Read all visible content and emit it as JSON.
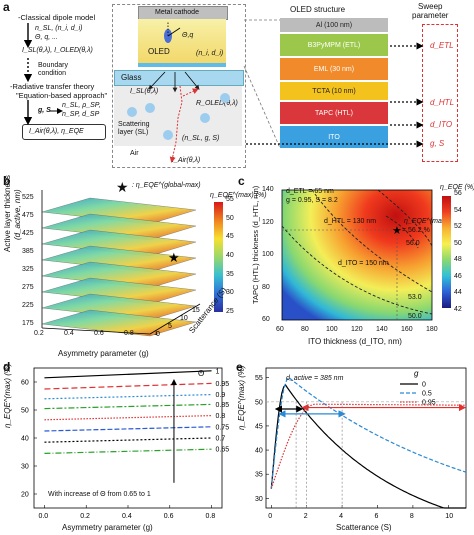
{
  "panel_a": {
    "label": "a",
    "steps": {
      "s1": "-Classical dipole model",
      "s2": "n_SL, (n_i, d_i)",
      "s3": "Θ, q, ...",
      "s4": "I_SL(θ,λ), I_OLED(θ,λ)",
      "s5": "Boundary",
      "s6": "condition",
      "s7": "-Radiative transfer theory",
      "s8": "\"Equation-based approach\"",
      "s9": "g, S",
      "s10": "n_SL, ρ_SP,",
      "s11": "n_SP, d_SP",
      "s12": "I_Air(θ,λ), η_EQE"
    },
    "device": {
      "cathode": "Metal cathode",
      "oled": "OLED",
      "theta_q": "Θ,q",
      "ni_di": "(n_i, d_i)",
      "glass": "Glass",
      "isl": "I_SL(θ,λ)",
      "roled": "R_OLED(θ,λ)",
      "scattering": "Scattering",
      "layer": "layer (SL)",
      "nsl": "(n_SL, g, S)",
      "air": "Air",
      "iair": "I_Air(θ,λ)"
    },
    "stack": {
      "title": "OLED structure",
      "layers": [
        "Al (100 nm)",
        "B3PyMPM (ETL)",
        "EML (30 nm)",
        "TCTA (10 nm)",
        "TAPC (HTL)",
        "ITO"
      ],
      "colors": [
        "#bcbcbc",
        "#9bc84a",
        "#f08a2a",
        "#f4c21c",
        "#d9373b",
        "#3aa0df"
      ]
    },
    "sweep": {
      "title1": "Sweep",
      "title2": "parameter",
      "etl": "d_ETL",
      "htl": "d_HTL",
      "ito": "d_ITO",
      "gs": "g, S"
    }
  },
  "panel_b": {
    "label": "b",
    "star_label": ": η_EQE^(global-max)",
    "cbar_title": "η_EQE^(max) (%)",
    "cbar_ticks": [
      "55",
      "50",
      "45",
      "40",
      "35",
      "30",
      "25"
    ],
    "y_title1": "Active layer thickness",
    "y_title2": "(d_active, nm)",
    "y_ticks": [
      "525",
      "475",
      "425",
      "385",
      "325",
      "275",
      "225",
      "175"
    ],
    "x_title": "Asymmetry parameter (g)",
    "x_ticks": [
      "0.2",
      "0.4",
      "0.6",
      "0.8",
      "1"
    ],
    "s_title": "Scatterance (S)",
    "s_ticks": [
      "0",
      "5",
      "10",
      "15"
    ]
  },
  "panel_c": {
    "label": "c",
    "legend": [
      "d_ETL = 65 nm",
      "g = 0.95, S = 8.2"
    ],
    "htl_label": "d_HTL = 130 nm",
    "ito_label": "d_ITO = 150 nm",
    "max_label": "η_EQE^(max)",
    "max_value": "= 56.2 %",
    "contours": [
      "56.0",
      "53.0",
      "50.0"
    ],
    "cbar_title": "η_EQE (%)",
    "cbar_ticks": [
      "56",
      "54",
      "52",
      "50",
      "48",
      "46",
      "44",
      "42"
    ],
    "y_title": "TAPC (HTL) thickness (d_HTL, nm)",
    "y_ticks": [
      "140",
      "120",
      "100",
      "80",
      "60"
    ],
    "x_title": "ITO thickness (d_ITO, nm)",
    "x_ticks": [
      "60",
      "80",
      "100",
      "120",
      "140",
      "160",
      "180"
    ]
  },
  "panel_d": {
    "label": "d",
    "y_title": "η_EQE^(max) (%)",
    "y_ticks": [
      "60",
      "50",
      "40",
      "30",
      "20"
    ],
    "x_title": "Asymmetry parameter (g)",
    "x_ticks": [
      "0.0",
      "0.2",
      "0.4",
      "0.6",
      "0.8"
    ],
    "legend_title": "Θ",
    "annotation": "With increase of Θ from 0.65 to 1",
    "series": [
      {
        "name": "1",
        "color": "#000000",
        "dash": "0",
        "start": 61.5,
        "end": 64.0
      },
      {
        "name": "0.95",
        "color": "#e03030",
        "dash": "6,3",
        "start": 57.5,
        "end": 59.5
      },
      {
        "name": "0.9",
        "color": "#2a8ad6",
        "dash": "2,2",
        "start": 54.0,
        "end": 55.5
      },
      {
        "name": "0.85",
        "color": "#2aa02a",
        "dash": "6,2,2,2",
        "start": 50.5,
        "end": 52.0
      },
      {
        "name": "0.8",
        "color": "#e03030",
        "dash": "1.5,1.5",
        "start": 46.5,
        "end": 48.0
      },
      {
        "name": "0.75",
        "color": "#2a5ad6",
        "dash": "5,2",
        "start": 42.5,
        "end": 44.0
      },
      {
        "name": "0.7",
        "color": "#000000",
        "dash": "2,2",
        "start": 38.5,
        "end": 40.0
      },
      {
        "name": "0.65",
        "color": "#2aa02a",
        "dash": "6,2,1,2",
        "start": 34.5,
        "end": 36.0
      }
    ]
  },
  "panel_e": {
    "label": "e",
    "dactive": "d_active = 385 nm",
    "legend_title": "g",
    "y_title": "η_EQE^(max) (%)",
    "y_ticks": [
      "55",
      "50",
      "45",
      "40",
      "35",
      "30"
    ],
    "x_title": "Scatterance (S)",
    "x_ticks": [
      "0",
      "2",
      "4",
      "6",
      "8",
      "10"
    ],
    "series": [
      {
        "name": "0",
        "color": "#000000",
        "dash": "0"
      },
      {
        "name": "0.5",
        "color": "#2a8ad6",
        "dash": "4,2"
      },
      {
        "name": "0.95",
        "color": "#e03030",
        "dash": "1.5,1.5"
      }
    ]
  }
}
